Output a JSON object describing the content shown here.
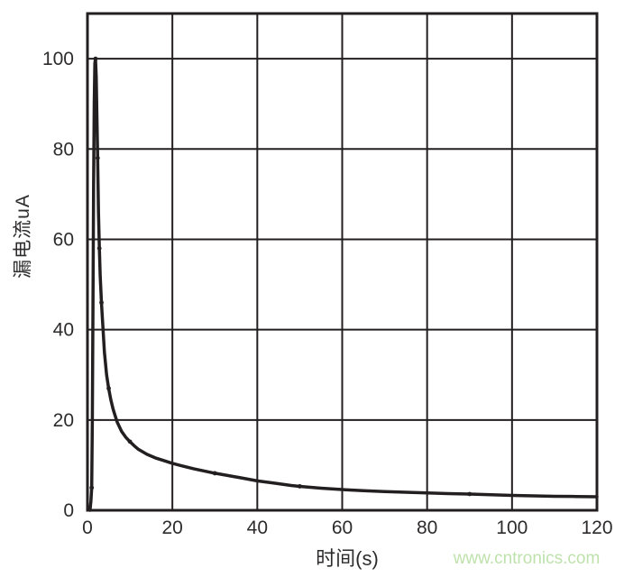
{
  "page": {
    "background": "#ffffff"
  },
  "chart_data": {
    "type": "line",
    "title": "",
    "xlabel": "时间(s)",
    "ylabel": "漏电流uA",
    "xlim": [
      0,
      120
    ],
    "ylim": [
      0,
      110
    ],
    "x_ticks": [
      0,
      20,
      40,
      60,
      80,
      100,
      120
    ],
    "y_ticks": [
      0,
      20,
      40,
      60,
      80,
      100
    ],
    "grid": true,
    "legend": "none",
    "line_color": "#231f20",
    "grid_color": "#231f20",
    "label_color": "#2d2b2c",
    "series": [
      {
        "name": "漏电流",
        "points": [
          [
            0.6,
            0
          ],
          [
            0.8,
            2
          ],
          [
            1,
            5
          ],
          [
            1.15,
            20
          ],
          [
            1.3,
            45
          ],
          [
            1.45,
            72
          ],
          [
            1.6,
            90
          ],
          [
            1.75,
            99
          ],
          [
            1.9,
            100
          ],
          [
            2.05,
            96
          ],
          [
            2.2,
            88
          ],
          [
            2.4,
            78
          ],
          [
            2.6,
            66
          ],
          [
            2.8,
            58
          ],
          [
            3,
            52
          ],
          [
            3.3,
            46
          ],
          [
            3.6,
            41
          ],
          [
            4,
            35
          ],
          [
            4.5,
            30
          ],
          [
            5,
            27
          ],
          [
            5.5,
            24.5
          ],
          [
            6,
            22.5
          ],
          [
            6.5,
            21
          ],
          [
            7,
            19.5
          ],
          [
            8,
            17.5
          ],
          [
            9,
            16.2
          ],
          [
            10,
            15.2
          ],
          [
            11,
            14.3
          ],
          [
            12,
            13.5
          ],
          [
            14,
            12.4
          ],
          [
            16,
            11.6
          ],
          [
            18,
            11
          ],
          [
            20,
            10.4
          ],
          [
            22,
            9.9
          ],
          [
            25,
            9.2
          ],
          [
            28,
            8.6
          ],
          [
            30,
            8.2
          ],
          [
            33,
            7.7
          ],
          [
            36,
            7.2
          ],
          [
            40,
            6.5
          ],
          [
            44,
            6.0
          ],
          [
            48,
            5.5
          ],
          [
            50,
            5.3
          ],
          [
            55,
            4.9
          ],
          [
            60,
            4.6
          ],
          [
            65,
            4.35
          ],
          [
            70,
            4.15
          ],
          [
            75,
            4.0
          ],
          [
            80,
            3.85
          ],
          [
            85,
            3.7
          ],
          [
            90,
            3.6
          ],
          [
            95,
            3.45
          ],
          [
            100,
            3.3
          ],
          [
            105,
            3.2
          ],
          [
            110,
            3.1
          ],
          [
            115,
            3.05
          ],
          [
            120,
            3.0
          ]
        ],
        "marker_points": [
          [
            1,
            5
          ],
          [
            1.9,
            100
          ],
          [
            2.4,
            78
          ],
          [
            2.8,
            58
          ],
          [
            3.3,
            46
          ],
          [
            5,
            27
          ],
          [
            10,
            15.2
          ],
          [
            30,
            8.2
          ],
          [
            50,
            5.3
          ],
          [
            90,
            3.6
          ]
        ]
      }
    ]
  },
  "watermark": {
    "text": "www.cntronics.com",
    "color": "#bfe2ad"
  }
}
